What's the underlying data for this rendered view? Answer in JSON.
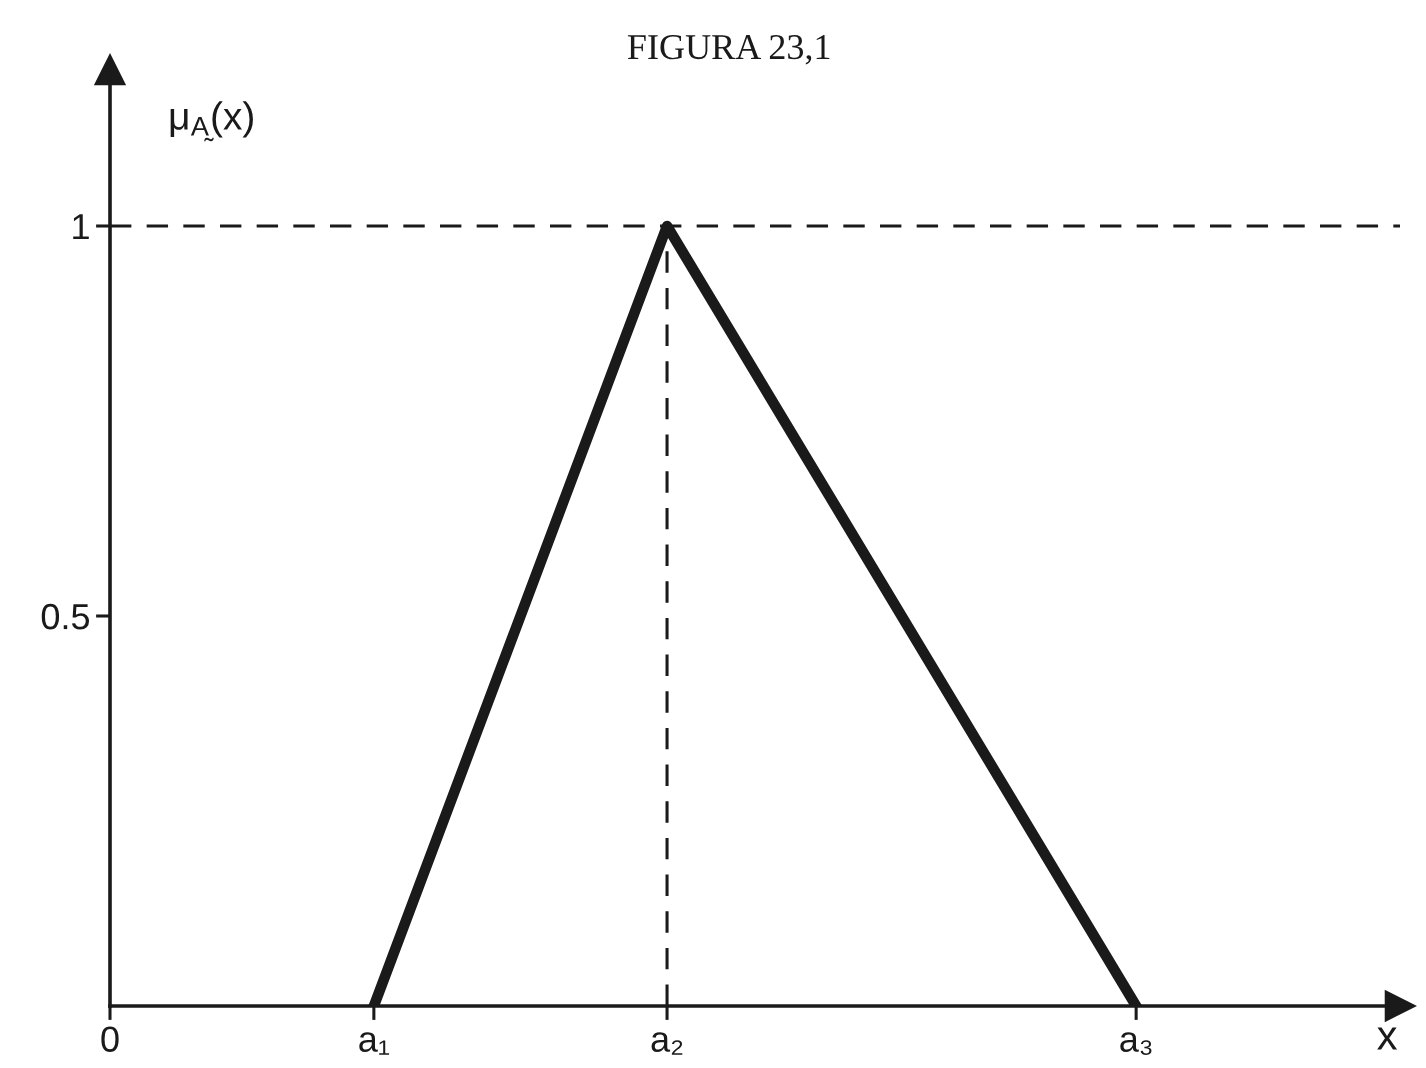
{
  "chart_data": {
    "type": "line",
    "title": "FIGURA 23,1",
    "ylabel": "μ$_{A̰}$(x)",
    "xlabel": "x",
    "categories": [
      "0",
      null,
      null,
      null,
      null,
      null,
      null,
      null,
      null,
      "a₁",
      null,
      null,
      null,
      null,
      null,
      null,
      null,
      null,
      null,
      "a₂",
      null,
      null,
      null,
      null,
      null,
      null,
      null,
      null,
      null,
      null,
      null,
      null,
      null,
      null,
      null,
      "a₃",
      null,
      null,
      null,
      null,
      null,
      null,
      null,
      null,
      null
    ],
    "series": [
      {
        "color": "#1a1a1a",
        "x": [
          "a₁",
          "a₂",
          "a₃"
        ],
        "values": [
          0,
          1,
          0
        ]
      }
    ],
    "ylim": [
      0,
      1.2
    ],
    "yticks": [
      0.5,
      1
    ],
    "ref_lines": [
      {
        "axis": "y",
        "value": 1,
        "line_style": "dashed",
        "color": "#1a1a1a"
      },
      {
        "axis": "x",
        "value": "a₂",
        "line_style": "dashed",
        "color": "#1a1a1a"
      }
    ],
    "marker": "none",
    "line_style": "solid"
  }
}
